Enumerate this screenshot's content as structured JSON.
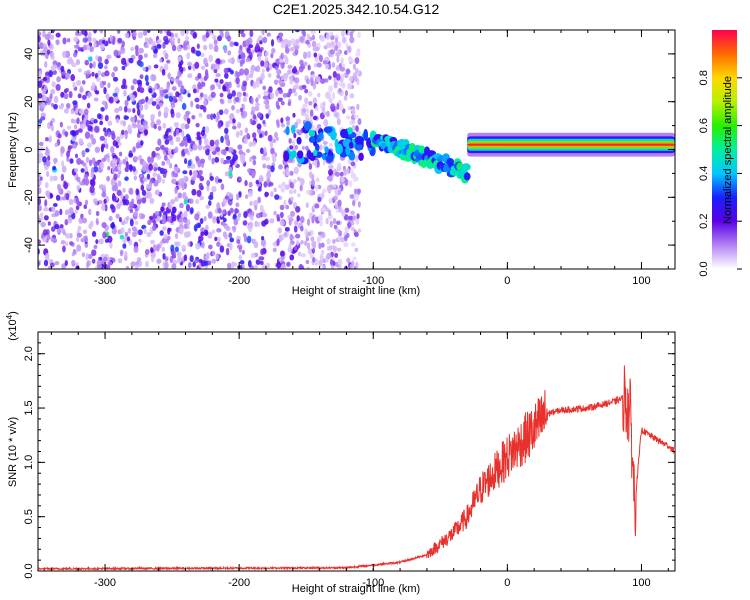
{
  "title": "C2E1.2025.342.10.54.G12",
  "chart_data": [
    {
      "type": "heatmap",
      "name": "spectrogram",
      "xlabel": "Height of straight line (km)",
      "ylabel": "Frequency (Hz)",
      "xlim": [
        -350,
        125
      ],
      "ylim": [
        -50,
        50
      ],
      "x_ticks": [
        -300,
        -200,
        -100,
        0,
        100
      ],
      "x_tick_labels": [
        "-300",
        "-200",
        "-100",
        "0",
        "100"
      ],
      "y_ticks": [
        -40,
        -20,
        0,
        20,
        40
      ],
      "y_tick_labels": [
        "-40",
        "-20",
        "0",
        "20",
        "40"
      ],
      "colorbar": {
        "label": "Normalized spectral amplitude",
        "range": [
          0,
          1
        ],
        "ticks": [
          0.0,
          0.2,
          0.4,
          0.6,
          0.8
        ],
        "tick_labels": [
          "0.0",
          "0.2",
          "0.4",
          "0.6",
          "0.8"
        ]
      },
      "features": [
        {
          "name": "noise-region",
          "x_range": [
            -350,
            -110
          ],
          "freq_range": [
            -50,
            50
          ],
          "amplitude": 0.15
        },
        {
          "name": "scattered-blobs",
          "x_range": [
            -165,
            -100
          ],
          "freq_range": [
            -5,
            10
          ],
          "amplitude": 0.3
        },
        {
          "name": "descending-trace",
          "x_range": [
            -100,
            -30
          ],
          "freq_start": 5,
          "freq_end": -10,
          "amplitude": 0.4
        },
        {
          "name": "tone-line",
          "x_range": [
            -30,
            125
          ],
          "freq": 2,
          "amplitude": 0.95
        }
      ]
    },
    {
      "type": "line",
      "name": "snr",
      "xlabel": "Height of straight line (km)",
      "ylabel": "SNR (10 * v/v)",
      "y_multiplier": "(x10",
      "y_multiplier_exp": "4",
      "y_multiplier_close": ")",
      "xlim": [
        -350,
        125
      ],
      "ylim": [
        0,
        2.2
      ],
      "x_ticks": [
        -300,
        -200,
        -100,
        0,
        100
      ],
      "x_tick_labels": [
        "-300",
        "-200",
        "-100",
        "0",
        "100"
      ],
      "y_ticks": [
        0.0,
        0.5,
        1.0,
        1.5,
        2.0
      ],
      "y_tick_labels": [
        "0.0",
        "0.5",
        "1.0",
        "1.5",
        "2.0"
      ],
      "series_color": "#e8312c",
      "anchor_points": {
        "x": [
          -350,
          -120,
          -80,
          -60,
          -50,
          -40,
          -30,
          -20,
          -10,
          0,
          10,
          20,
          30,
          40,
          60,
          80,
          88,
          92,
          95,
          100,
          110,
          120,
          125
        ],
        "y": [
          0.02,
          0.03,
          0.08,
          0.15,
          0.25,
          0.35,
          0.5,
          0.75,
          0.9,
          1.05,
          1.18,
          1.3,
          1.45,
          1.48,
          1.5,
          1.56,
          1.6,
          1.4,
          0.6,
          1.3,
          1.22,
          1.15,
          1.1
        ]
      }
    }
  ]
}
